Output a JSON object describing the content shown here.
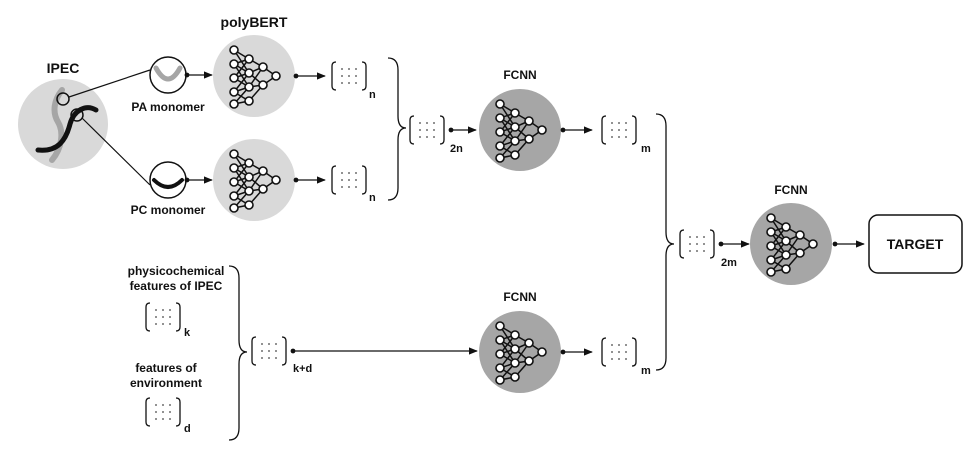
{
  "labels": {
    "ipec": "IPEC",
    "polybert": "polyBERT",
    "pa_monomer": "PA monomer",
    "pc_monomer": "PC monomer",
    "fcnn_top": "FCNN",
    "fcnn_bottom": "FCNN",
    "fcnn_final": "FCNN",
    "target": "TARGET",
    "physchem_line1": "physicochemical",
    "physchem_line2": "features of IPEC",
    "env_line1": "features of",
    "env_line2": "environment"
  },
  "subscripts": {
    "pa_vec": "n",
    "pc_vec": "n",
    "concat_top": "2n",
    "fcnn_top_out": "m",
    "physchem_vec": "k",
    "env_vec": "d",
    "concat_bottom": "k+d",
    "fcnn_bottom_out": "m",
    "concat_final": "2m"
  },
  "colors": {
    "light_node": "#d9d9d9",
    "dark_node": "#a6a6a6",
    "stroke": "#111111"
  }
}
